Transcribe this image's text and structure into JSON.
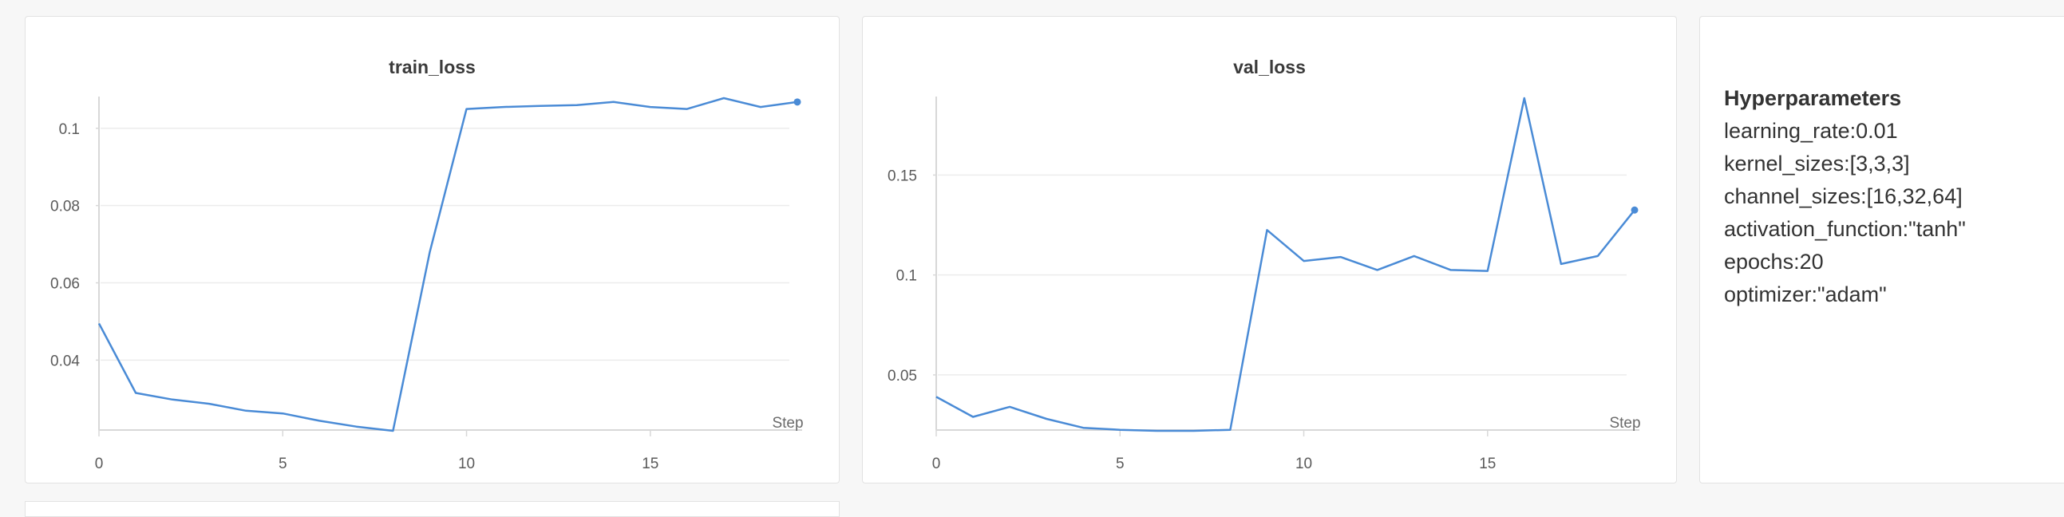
{
  "chart_data": [
    {
      "type": "line",
      "title": "train_loss",
      "xlabel": "Step",
      "ylabel": "",
      "x": [
        0,
        1,
        2,
        3,
        4,
        5,
        6,
        7,
        8,
        9,
        10,
        11,
        12,
        13,
        14,
        15,
        16,
        17,
        18,
        19
      ],
      "series": [
        {
          "values": [
            0.0495,
            0.0315,
            0.0298,
            0.0287,
            0.0269,
            0.0262,
            0.0243,
            0.0228,
            0.0217,
            0.068,
            0.105,
            0.1055,
            0.1058,
            0.106,
            0.1068,
            0.1055,
            0.105,
            0.1078,
            0.1055,
            0.1068
          ]
        }
      ],
      "xticks": [
        0,
        5,
        10,
        15
      ],
      "xtick_labels": [
        "0",
        "5",
        "10",
        "15"
      ],
      "yticks": [
        0.04,
        0.06,
        0.08,
        0.1
      ],
      "ytick_labels": [
        "0.04",
        "0.06",
        "0.08",
        "0.1"
      ],
      "xlim": [
        0,
        19
      ],
      "ylim": [
        0.0217,
        0.1078
      ],
      "grid": "horizontal",
      "color": "#4a8bd6"
    },
    {
      "type": "line",
      "title": "val_loss",
      "xlabel": "Step",
      "ylabel": "",
      "x": [
        0,
        1,
        2,
        3,
        4,
        5,
        6,
        7,
        8,
        9,
        10,
        11,
        12,
        13,
        14,
        15,
        16,
        17,
        18,
        19
      ],
      "series": [
        {
          "values": [
            0.039,
            0.029,
            0.034,
            0.028,
            0.0235,
            0.0225,
            0.022,
            0.022,
            0.0225,
            0.1225,
            0.107,
            0.109,
            0.1025,
            0.1095,
            0.1025,
            0.102,
            0.1885,
            0.1055,
            0.1095,
            0.1325
          ]
        }
      ],
      "xticks": [
        0,
        5,
        10,
        15
      ],
      "xtick_labels": [
        "0",
        "5",
        "10",
        "15"
      ],
      "yticks": [
        0.05,
        0.1,
        0.15
      ],
      "ytick_labels": [
        "0.05",
        "0.1",
        "0.15"
      ],
      "xlim": [
        0,
        19
      ],
      "ylim": [
        0.022,
        0.1885
      ],
      "grid": "horizontal",
      "color": "#4a8bd6"
    }
  ],
  "hyperparameters": {
    "title": "Hyperparameters",
    "lines": [
      "learning_rate:0.01",
      "kernel_sizes:[3,3,3]",
      "channel_sizes:[16,32,64]",
      "activation_function:\"tanh\"",
      "epochs:20",
      "optimizer:\"adam\""
    ]
  }
}
